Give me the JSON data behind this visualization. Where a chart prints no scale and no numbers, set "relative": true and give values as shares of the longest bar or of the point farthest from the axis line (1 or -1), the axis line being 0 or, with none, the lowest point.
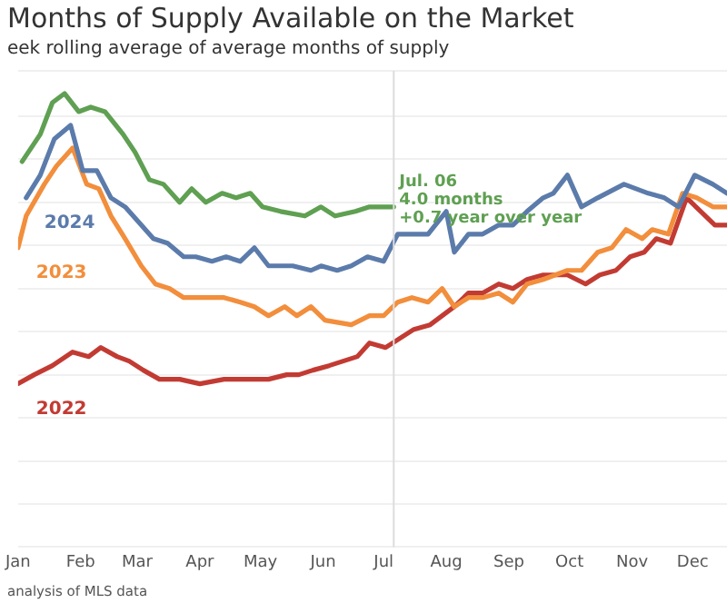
{
  "chart_data": {
    "type": "line",
    "title": "Months of Supply Available on the Market",
    "subtitle": "eek rolling average of average months of supply",
    "relative": true,
    "grid": "y",
    "legend": false,
    "marker": "none",
    "line_style": "solid",
    "xlim": [
      "--01-01",
      "--12-18"
    ],
    "xticks": [
      {
        "value": "--01-01",
        "label": "Jan"
      },
      {
        "value": "--02-01",
        "label": "Feb"
      },
      {
        "value": "--03-01",
        "label": "Mar"
      },
      {
        "value": "--04-01",
        "label": "Apr"
      },
      {
        "value": "--05-01",
        "label": "May"
      },
      {
        "value": "--06-01",
        "label": "Jun"
      },
      {
        "value": "--07-01",
        "label": "Jul"
      },
      {
        "value": "--08-01",
        "label": "Aug"
      },
      {
        "value": "--09-01",
        "label": "Sep"
      },
      {
        "value": "--10-01",
        "label": "Oct"
      },
      {
        "value": "--11-01",
        "label": "Nov"
      },
      {
        "value": "--12-01",
        "label": "Dec"
      }
    ],
    "series": [
      {
        "color": "#5fa052",
        "x": [
          "--01-03",
          "--01-12",
          "--01-18",
          "--01-24",
          "--01-31",
          "--02-06",
          "--02-13",
          "--02-22",
          "--02-28",
          "--03-07",
          "--03-14",
          "--03-22",
          "--03-28",
          "--04-04",
          "--04-12",
          "--04-19",
          "--04-26",
          "--05-02",
          "--05-11",
          "--05-23",
          "--05-31",
          "--06-07",
          "--06-17",
          "--06-24",
          "--07-01",
          "--07-06"
        ],
        "values": [
          0.85,
          0.91,
          0.98,
          1.0,
          0.96,
          0.97,
          0.96,
          0.91,
          0.87,
          0.81,
          0.8,
          0.76,
          0.79,
          0.76,
          0.78,
          0.77,
          0.78,
          0.75,
          0.74,
          0.73,
          0.75,
          0.73,
          0.74,
          0.75,
          0.75,
          0.75
        ]
      },
      {
        "name": "2024",
        "color": "#5b7bab",
        "x": [
          "--01-05",
          "--01-12",
          "--01-19",
          "--01-27",
          "--02-02",
          "--02-09",
          "--02-16",
          "--02-23",
          "--03-03",
          "--03-09",
          "--03-16",
          "--03-24",
          "--03-30",
          "--04-07",
          "--04-14",
          "--04-21",
          "--04-28",
          "--05-05",
          "--05-17",
          "--05-26",
          "--05-31",
          "--06-08",
          "--06-15",
          "--06-23",
          "--07-01",
          "--07-08",
          "--07-15",
          "--07-23",
          "--08-01",
          "--08-05",
          "--08-12",
          "--08-19",
          "--08-27",
          "--09-03",
          "--09-10",
          "--09-18",
          "--09-23",
          "--09-30",
          "--10-07",
          "--10-15",
          "--10-28",
          "--11-09",
          "--11-17",
          "--11-24",
          "--12-02",
          "--12-11",
          "--12-18"
        ],
        "values": [
          0.77,
          0.82,
          0.9,
          0.93,
          0.83,
          0.83,
          0.77,
          0.75,
          0.71,
          0.68,
          0.67,
          0.64,
          0.64,
          0.63,
          0.64,
          0.63,
          0.66,
          0.62,
          0.62,
          0.61,
          0.62,
          0.61,
          0.62,
          0.64,
          0.63,
          0.69,
          0.69,
          0.69,
          0.74,
          0.65,
          0.69,
          0.69,
          0.71,
          0.71,
          0.74,
          0.77,
          0.78,
          0.82,
          0.75,
          0.77,
          0.8,
          0.78,
          0.77,
          0.75,
          0.82,
          0.8,
          0.78
        ]
      },
      {
        "name": "2023",
        "color": "#f28e3c",
        "x": [
          "--01-01",
          "--01-05",
          "--01-14",
          "--01-20",
          "--01-28",
          "--02-04",
          "--02-10",
          "--02-16",
          "--02-23",
          "--03-03",
          "--03-10",
          "--03-17",
          "--03-24",
          "--04-06",
          "--04-13",
          "--04-21",
          "--04-28",
          "--05-05",
          "--05-13",
          "--05-19",
          "--05-26",
          "--06-02",
          "--06-15",
          "--06-24",
          "--07-01",
          "--07-08",
          "--07-15",
          "--07-23",
          "--07-30",
          "--08-05",
          "--08-12",
          "--08-19",
          "--08-27",
          "--09-03",
          "--09-10",
          "--09-18",
          "--09-30",
          "--10-07",
          "--10-15",
          "--10-22",
          "--10-29",
          "--11-06",
          "--11-11",
          "--11-19",
          "--11-26",
          "--12-03",
          "--12-11",
          "--12-18"
        ],
        "values": [
          0.66,
          0.73,
          0.8,
          0.84,
          0.88,
          0.8,
          0.79,
          0.73,
          0.68,
          0.62,
          0.58,
          0.57,
          0.55,
          0.55,
          0.55,
          0.54,
          0.53,
          0.51,
          0.53,
          0.51,
          0.53,
          0.5,
          0.49,
          0.51,
          0.51,
          0.54,
          0.55,
          0.54,
          0.57,
          0.53,
          0.55,
          0.55,
          0.56,
          0.54,
          0.58,
          0.59,
          0.61,
          0.61,
          0.65,
          0.66,
          0.7,
          0.68,
          0.7,
          0.69,
          0.78,
          0.77,
          0.75,
          0.75
        ]
      },
      {
        "name": "2022",
        "color": "#c23b33",
        "x": [
          "--01-01",
          "--01-09",
          "--01-18",
          "--01-28",
          "--02-05",
          "--02-11",
          "--02-19",
          "--02-25",
          "--03-04",
          "--03-12",
          "--03-22",
          "--04-01",
          "--04-13",
          "--04-26",
          "--05-05",
          "--05-14",
          "--05-20",
          "--05-27",
          "--06-04",
          "--06-11",
          "--06-18",
          "--06-24",
          "--07-02",
          "--07-09",
          "--07-16",
          "--07-24",
          "--07-30",
          "--08-05",
          "--08-12",
          "--08-19",
          "--08-27",
          "--09-03",
          "--09-10",
          "--09-18",
          "--09-30",
          "--10-09",
          "--10-16",
          "--10-24",
          "--10-31",
          "--11-07",
          "--11-13",
          "--11-20",
          "--11-28",
          "--12-05",
          "--12-12",
          "--12-18"
        ],
        "values": [
          0.36,
          0.38,
          0.4,
          0.43,
          0.42,
          0.44,
          0.42,
          0.41,
          0.39,
          0.37,
          0.37,
          0.36,
          0.37,
          0.37,
          0.37,
          0.38,
          0.38,
          0.39,
          0.4,
          0.41,
          0.42,
          0.45,
          0.44,
          0.46,
          0.48,
          0.49,
          0.51,
          0.53,
          0.56,
          0.56,
          0.58,
          0.57,
          0.59,
          0.6,
          0.6,
          0.58,
          0.6,
          0.61,
          0.64,
          0.65,
          0.68,
          0.67,
          0.77,
          0.74,
          0.71,
          0.71
        ]
      }
    ],
    "ref_lines": [
      {
        "axis": "x",
        "value": "--07-06",
        "color": "#dddddd"
      }
    ],
    "annotations": [
      {
        "text": "Jul. 06\n4.0 months\n+0.7 year over year",
        "x": "--07-06",
        "y": 0.75
      },
      "analysis of MLS data"
    ]
  }
}
